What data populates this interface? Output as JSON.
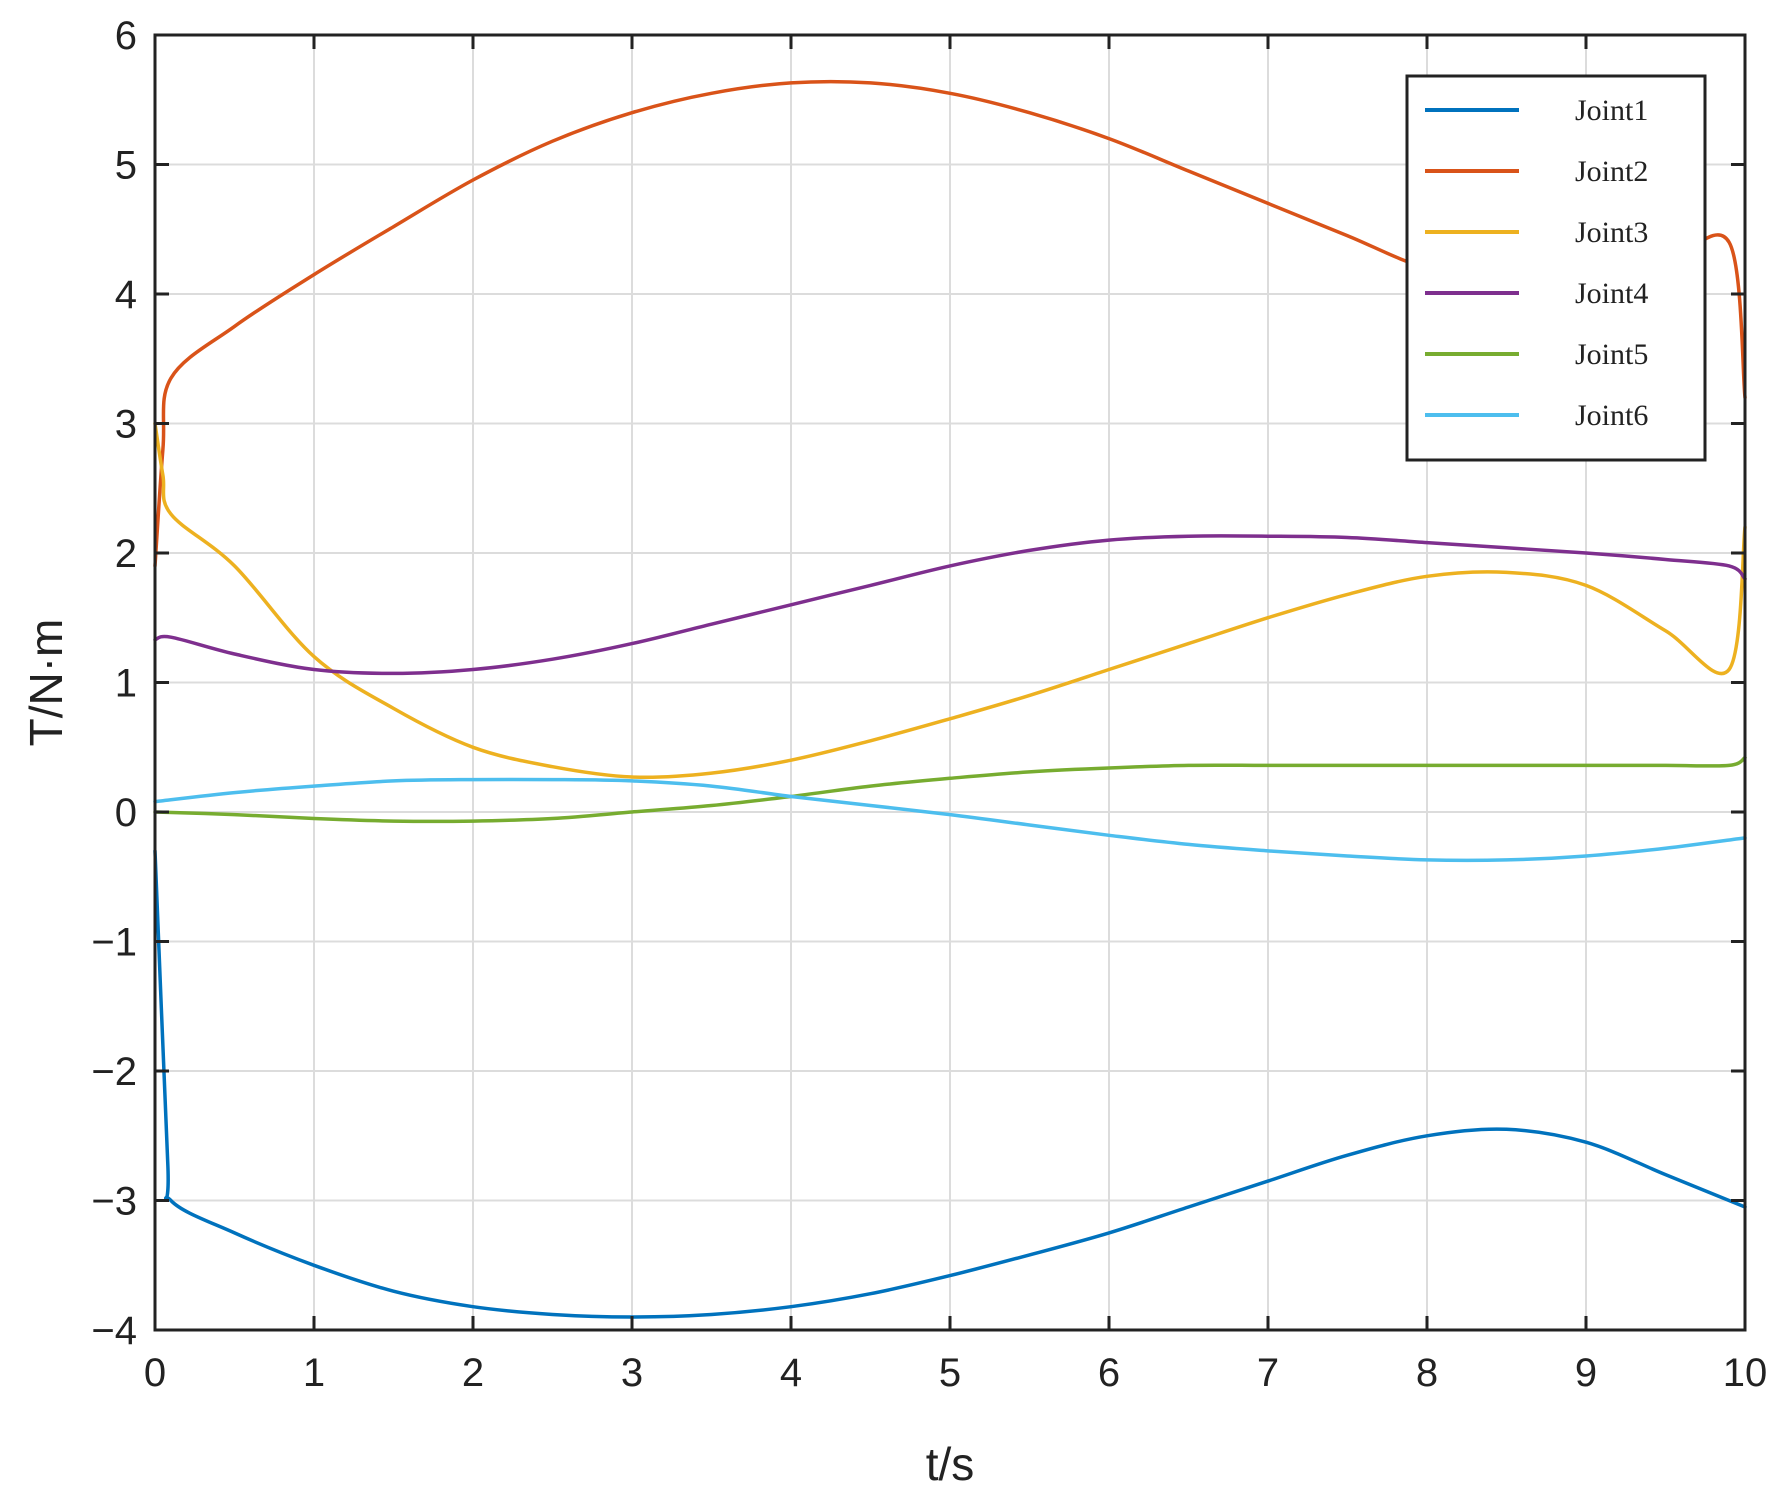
{
  "chart_data": {
    "type": "line",
    "title": "",
    "xlabel": "t/s",
    "ylabel": "T/N·m",
    "xlim": [
      0,
      10
    ],
    "ylim": [
      -4,
      6
    ],
    "xticks": [
      "0",
      "1",
      "2",
      "3",
      "4",
      "5",
      "6",
      "7",
      "8",
      "9",
      "10"
    ],
    "yticks": [
      "6",
      "5",
      "4",
      "3",
      "2",
      "1",
      "0",
      "−1",
      "−2",
      "−3",
      "−4"
    ],
    "grid": true,
    "legend_position": "top-right",
    "series": [
      {
        "name": "Joint1",
        "color": "#0072BD",
        "points": [
          [
            0,
            -0.3
          ],
          [
            0.08,
            -2.7
          ],
          [
            0.1,
            -3.0
          ],
          [
            0.5,
            -3.25
          ],
          [
            1,
            -3.5
          ],
          [
            1.5,
            -3.7
          ],
          [
            2,
            -3.82
          ],
          [
            2.5,
            -3.88
          ],
          [
            3,
            -3.9
          ],
          [
            3.5,
            -3.88
          ],
          [
            4,
            -3.82
          ],
          [
            4.5,
            -3.72
          ],
          [
            5,
            -3.58
          ],
          [
            5.5,
            -3.42
          ],
          [
            6,
            -3.25
          ],
          [
            6.5,
            -3.05
          ],
          [
            7,
            -2.85
          ],
          [
            7.5,
            -2.65
          ],
          [
            8,
            -2.5
          ],
          [
            8.5,
            -2.45
          ],
          [
            9,
            -2.55
          ],
          [
            9.5,
            -2.8
          ],
          [
            10,
            -3.05
          ]
        ]
      },
      {
        "name": "Joint2",
        "color": "#D95319",
        "points": [
          [
            0,
            1.9
          ],
          [
            0.05,
            2.8
          ],
          [
            0.1,
            3.35
          ],
          [
            0.5,
            3.75
          ],
          [
            1,
            4.15
          ],
          [
            1.5,
            4.52
          ],
          [
            2,
            4.88
          ],
          [
            2.5,
            5.18
          ],
          [
            3,
            5.4
          ],
          [
            3.5,
            5.55
          ],
          [
            4,
            5.63
          ],
          [
            4.5,
            5.63
          ],
          [
            5,
            5.55
          ],
          [
            5.5,
            5.4
          ],
          [
            6,
            5.2
          ],
          [
            6.5,
            4.95
          ],
          [
            7,
            4.7
          ],
          [
            7.5,
            4.45
          ],
          [
            8,
            4.2
          ],
          [
            8.5,
            4.12
          ],
          [
            9,
            4.15
          ],
          [
            9.5,
            4.25
          ],
          [
            9.9,
            4.4
          ],
          [
            10,
            3.2
          ]
        ]
      },
      {
        "name": "Joint3",
        "color": "#EDB120",
        "points": [
          [
            0,
            3.0
          ],
          [
            0.05,
            2.6
          ],
          [
            0.1,
            2.3
          ],
          [
            0.5,
            1.9
          ],
          [
            1,
            1.2
          ],
          [
            1.5,
            0.8
          ],
          [
            2,
            0.5
          ],
          [
            2.5,
            0.35
          ],
          [
            3,
            0.27
          ],
          [
            3.5,
            0.3
          ],
          [
            4,
            0.4
          ],
          [
            4.5,
            0.55
          ],
          [
            5,
            0.72
          ],
          [
            5.5,
            0.9
          ],
          [
            6,
            1.1
          ],
          [
            6.5,
            1.3
          ],
          [
            7,
            1.5
          ],
          [
            7.5,
            1.68
          ],
          [
            8,
            1.82
          ],
          [
            8.5,
            1.85
          ],
          [
            9,
            1.75
          ],
          [
            9.5,
            1.4
          ],
          [
            9.9,
            1.1
          ],
          [
            10,
            2.2
          ]
        ]
      },
      {
        "name": "Joint4",
        "color": "#7E2F8E",
        "points": [
          [
            0,
            1.33
          ],
          [
            0.1,
            1.35
          ],
          [
            0.5,
            1.22
          ],
          [
            1,
            1.1
          ],
          [
            1.5,
            1.07
          ],
          [
            2,
            1.1
          ],
          [
            2.5,
            1.18
          ],
          [
            3,
            1.3
          ],
          [
            3.5,
            1.45
          ],
          [
            4,
            1.6
          ],
          [
            4.5,
            1.75
          ],
          [
            5,
            1.9
          ],
          [
            5.5,
            2.02
          ],
          [
            6,
            2.1
          ],
          [
            6.5,
            2.13
          ],
          [
            7,
            2.13
          ],
          [
            7.5,
            2.12
          ],
          [
            8,
            2.08
          ],
          [
            8.5,
            2.04
          ],
          [
            9,
            2.0
          ],
          [
            9.5,
            1.95
          ],
          [
            9.9,
            1.9
          ],
          [
            10,
            1.8
          ]
        ]
      },
      {
        "name": "Joint5",
        "color": "#77AC30",
        "points": [
          [
            0,
            0.0
          ],
          [
            0.5,
            -0.02
          ],
          [
            1,
            -0.05
          ],
          [
            1.5,
            -0.07
          ],
          [
            2,
            -0.07
          ],
          [
            2.5,
            -0.05
          ],
          [
            3,
            0.0
          ],
          [
            3.5,
            0.05
          ],
          [
            4,
            0.12
          ],
          [
            4.5,
            0.2
          ],
          [
            5,
            0.26
          ],
          [
            5.5,
            0.31
          ],
          [
            6,
            0.34
          ],
          [
            6.5,
            0.36
          ],
          [
            7,
            0.36
          ],
          [
            7.5,
            0.36
          ],
          [
            8,
            0.36
          ],
          [
            8.5,
            0.36
          ],
          [
            9,
            0.36
          ],
          [
            9.5,
            0.36
          ],
          [
            9.9,
            0.36
          ],
          [
            10,
            0.42
          ]
        ]
      },
      {
        "name": "Joint6",
        "color": "#4DBEEE",
        "points": [
          [
            0,
            0.08
          ],
          [
            0.5,
            0.15
          ],
          [
            1,
            0.2
          ],
          [
            1.5,
            0.24
          ],
          [
            2,
            0.25
          ],
          [
            2.5,
            0.25
          ],
          [
            3,
            0.24
          ],
          [
            3.5,
            0.2
          ],
          [
            4,
            0.12
          ],
          [
            4.5,
            0.05
          ],
          [
            5,
            -0.02
          ],
          [
            5.5,
            -0.1
          ],
          [
            6,
            -0.18
          ],
          [
            6.5,
            -0.25
          ],
          [
            7,
            -0.3
          ],
          [
            7.5,
            -0.34
          ],
          [
            8,
            -0.37
          ],
          [
            8.5,
            -0.37
          ],
          [
            9,
            -0.34
          ],
          [
            9.5,
            -0.28
          ],
          [
            10,
            -0.2
          ]
        ]
      }
    ]
  }
}
